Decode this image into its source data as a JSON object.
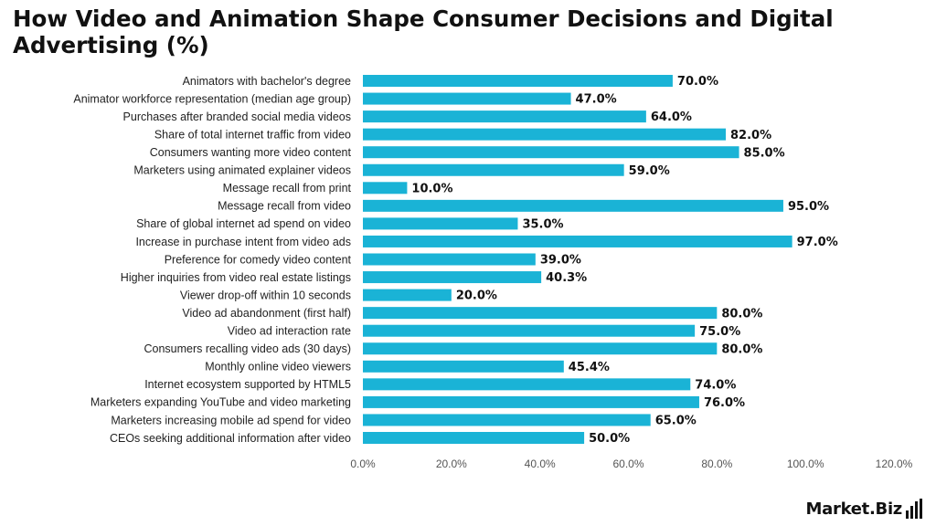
{
  "title": "How Video and Animation Shape Consumer Decisions and Digital Advertising (%)",
  "brand": {
    "name": "Market.Biz",
    "logo_icon": "bar-chart-icon"
  },
  "colors": {
    "bar": "#1ab3d6"
  },
  "chart_data": {
    "type": "bar",
    "orientation": "horizontal",
    "title": "How Video and Animation Shape Consumer Decisions and Digital Advertising (%)",
    "xlabel": "",
    "ylabel": "",
    "xlim": [
      0,
      120
    ],
    "xticks": [
      "0.0%",
      "20.0%",
      "40.0%",
      "60.0%",
      "80.0%",
      "100.0%",
      "120.0%"
    ],
    "grid": false,
    "legend": "none",
    "categories": [
      "Animators with bachelor's degree",
      "Animator workforce representation (median age group)",
      "Purchases after branded social media videos",
      "Share of total internet traffic from video",
      "Consumers wanting more video content",
      "Marketers using animated explainer videos",
      "Message recall from print",
      "Message recall from video",
      "Share of global internet ad spend on video",
      "Increase in purchase intent from video ads",
      "Preference for comedy video content",
      "Higher inquiries from video real estate listings",
      "Viewer drop-off within 10 seconds",
      "Video ad abandonment (first half)",
      "Video ad interaction rate",
      "Consumers recalling video ads (30 days)",
      "Monthly online video viewers",
      "Internet ecosystem supported by HTML5",
      "Marketers expanding YouTube and video marketing",
      "Marketers increasing mobile ad spend for video",
      "CEOs seeking additional information after video"
    ],
    "values": [
      70.0,
      47.0,
      64.0,
      82.0,
      85.0,
      59.0,
      10.0,
      95.0,
      35.0,
      97.0,
      39.0,
      40.3,
      20.0,
      80.0,
      75.0,
      80.0,
      45.4,
      74.0,
      76.0,
      65.0,
      50.0
    ],
    "data_labels": [
      "70.0%",
      "47.0%",
      "64.0%",
      "82.0%",
      "85.0%",
      "59.0%",
      "10.0%",
      "95.0%",
      "35.0%",
      "97.0%",
      "39.0%",
      "40.3%",
      "20.0%",
      "80.0%",
      "75.0%",
      "80.0%",
      "45.4%",
      "74.0%",
      "76.0%",
      "65.0%",
      "50.0%"
    ]
  }
}
